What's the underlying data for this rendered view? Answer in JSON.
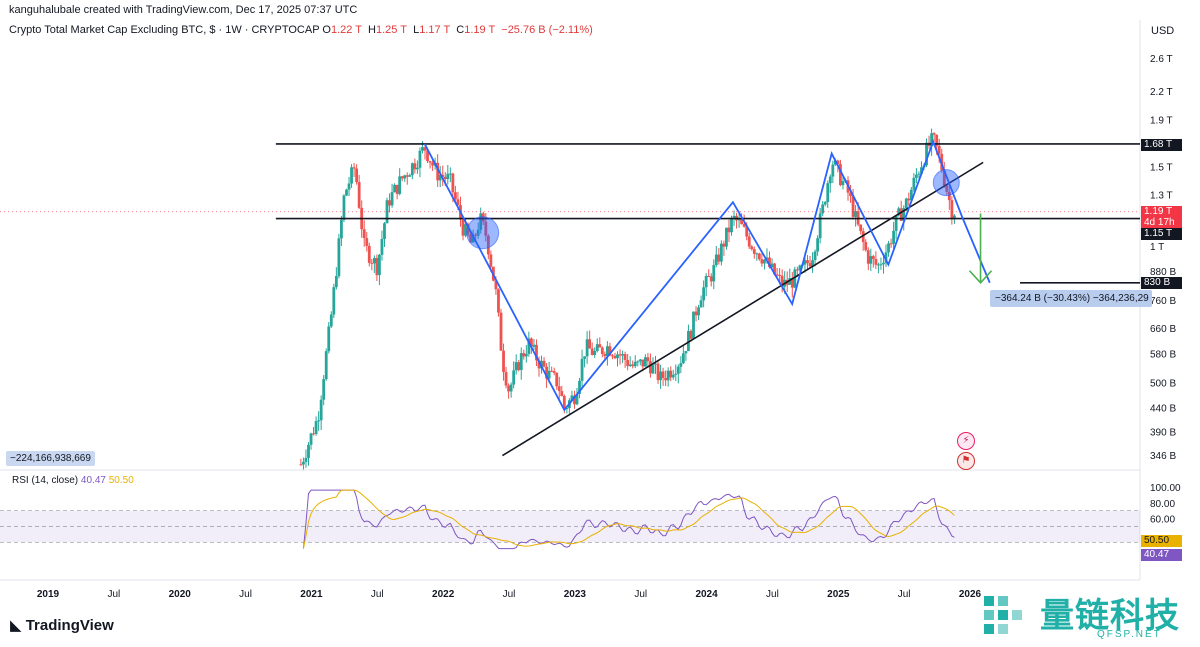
{
  "header": {
    "credit": "kanguhalubale created with TradingView.com, Dec 17, 2025 07:37 UTC",
    "symbol": "Crypto Total Market Cap Excluding BTC, $ · 1W · CRYPTOCAP",
    "open_label": "O",
    "open": "1.22 T",
    "high_label": "H",
    "high": "1.25 T",
    "low_label": "L",
    "low": "1.17 T",
    "close_label": "C",
    "close": "1.19 T",
    "change": "−25.76 B (−2.11%)",
    "currency": "USD"
  },
  "price_tags": {
    "resistance": "1.68 T",
    "current": "1.19 T",
    "countdown": "4d 17h",
    "support": "1.15 T",
    "target": "830 B"
  },
  "measure": {
    "box": "−364.24 B (−30.43%) −364,236,29",
    "left_readout": "−224,166,938,669"
  },
  "rsi": {
    "label": "RSI (14, close)",
    "value": "40.47",
    "ma": "50.50",
    "value_tag": "40.47",
    "ma_tag": "50.50"
  },
  "watermark": {
    "tv": "TradingView",
    "cn": "量链科技",
    "site": "QFSP.NET"
  },
  "colors": {
    "up": "#26a69a",
    "down": "#ef5350",
    "pattern": "#2962ff",
    "rsi": "#7e57c2",
    "rsi_ma": "#e9b100",
    "tag_red": "#f23645"
  },
  "chart_data": {
    "type": "candlestick",
    "title": "Crypto Total Market Cap Excluding BTC, $ · 1W · CRYPTOCAP",
    "y_scale": "log",
    "y_ticks": [
      "2.6 T",
      "2.2 T",
      "1.9 T",
      "1.5 T",
      "1.3 T",
      "1 T",
      "880 B",
      "760 B",
      "660 B",
      "580 B",
      "500 B",
      "440 B",
      "390 B",
      "346 B"
    ],
    "y_tick_values": [
      2600,
      2200,
      1900,
      1500,
      1300,
      1000,
      880,
      760,
      660,
      580,
      500,
      440,
      390,
      346
    ],
    "x_ticks": [
      "2019",
      "Jul",
      "2020",
      "Jul",
      "2021",
      "Jul",
      "2022",
      "Jul",
      "2023",
      "Jul",
      "2024",
      "Jul",
      "2025",
      "Jul",
      "2026"
    ],
    "x_tick_years": [
      2019.0,
      2019.5,
      2020.0,
      2020.5,
      2021.0,
      2021.5,
      2022.0,
      2022.5,
      2023.0,
      2023.5,
      2024.0,
      2024.5,
      2025.0,
      2025.5,
      2026.0
    ],
    "price_path": [
      [
        2020.92,
        330
      ],
      [
        2021.05,
        420
      ],
      [
        2021.15,
        700
      ],
      [
        2021.25,
        1300
      ],
      [
        2021.33,
        1500
      ],
      [
        2021.4,
        1000
      ],
      [
        2021.5,
        900
      ],
      [
        2021.58,
        1250
      ],
      [
        2021.68,
        1400
      ],
      [
        2021.8,
        1550
      ],
      [
        2021.86,
        1650
      ],
      [
        2021.95,
        1450
      ],
      [
        2022.05,
        1400
      ],
      [
        2022.15,
        1100
      ],
      [
        2022.22,
        1000
      ],
      [
        2022.28,
        1150
      ],
      [
        2022.33,
        1050
      ],
      [
        2022.4,
        790
      ],
      [
        2022.45,
        560
      ],
      [
        2022.5,
        480
      ],
      [
        2022.58,
        560
      ],
      [
        2022.65,
        610
      ],
      [
        2022.72,
        560
      ],
      [
        2022.8,
        520
      ],
      [
        2022.87,
        500
      ],
      [
        2022.92,
        440
      ],
      [
        2023.0,
        470
      ],
      [
        2023.08,
        600
      ],
      [
        2023.15,
        580
      ],
      [
        2023.25,
        600
      ],
      [
        2023.33,
        580
      ],
      [
        2023.45,
        540
      ],
      [
        2023.55,
        560
      ],
      [
        2023.65,
        510
      ],
      [
        2023.72,
        530
      ],
      [
        2023.8,
        560
      ],
      [
        2023.88,
        650
      ],
      [
        2023.95,
        780
      ],
      [
        2024.05,
        880
      ],
      [
        2024.12,
        1000
      ],
      [
        2024.2,
        1150
      ],
      [
        2024.25,
        1120
      ],
      [
        2024.35,
        1000
      ],
      [
        2024.42,
        950
      ],
      [
        2024.5,
        880
      ],
      [
        2024.58,
        820
      ],
      [
        2024.65,
        840
      ],
      [
        2024.72,
        880
      ],
      [
        2024.8,
        950
      ],
      [
        2024.88,
        1200
      ],
      [
        2024.95,
        1550
      ],
      [
        2025.0,
        1450
      ],
      [
        2025.08,
        1300
      ],
      [
        2025.15,
        1100
      ],
      [
        2025.22,
        950
      ],
      [
        2025.3,
        900
      ],
      [
        2025.38,
        1000
      ],
      [
        2025.45,
        1150
      ],
      [
        2025.52,
        1250
      ],
      [
        2025.6,
        1450
      ],
      [
        2025.68,
        1650
      ],
      [
        2025.72,
        1720
      ],
      [
        2025.76,
        1600
      ],
      [
        2025.82,
        1350
      ],
      [
        2025.86,
        1200
      ],
      [
        2025.9,
        1190
      ]
    ],
    "levels": {
      "resistance": 1680,
      "support": 1150,
      "target": 830
    },
    "pattern_path": [
      [
        2021.86,
        1680
      ],
      [
        2022.92,
        435
      ],
      [
        2024.2,
        1250
      ],
      [
        2024.65,
        745
      ],
      [
        2024.95,
        1600
      ],
      [
        2025.38,
        910
      ],
      [
        2025.72,
        1700
      ],
      [
        2025.94,
        1160
      ],
      [
        2026.15,
        830
      ]
    ],
    "trendline": [
      [
        2022.45,
        345
      ],
      [
        2026.1,
        1530
      ]
    ],
    "projection": {
      "from": [
        2026.08,
        1180
      ],
      "to": [
        2026.08,
        830
      ]
    },
    "circles": [
      [
        2022.3,
        1070
      ],
      [
        2025.82,
        1380
      ]
    ],
    "rsi_range": [
      0,
      100
    ],
    "rsi_ticks": [
      "100.00",
      "80.00",
      "60.00"
    ],
    "rsi_tick_values": [
      100,
      80,
      60
    ],
    "rsi_band": [
      70,
      30
    ],
    "rsi_last": 40.47,
    "rsi_ma_last": 50.5
  }
}
